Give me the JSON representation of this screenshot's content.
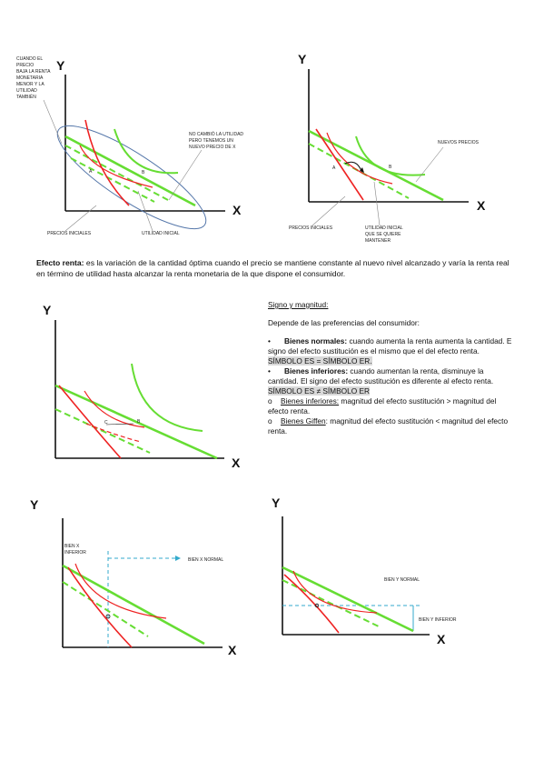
{
  "figures": {
    "fig1": {
      "y_axis": "Y",
      "x_axis": "X",
      "point_a": "A",
      "point_b": "B",
      "note_left": [
        "CUANDO EL",
        "PRECIO",
        "BAJA LA RENTA",
        "MONETARIA",
        "MENOR Y LA",
        "UTILIDAD",
        "TAMBIÉN"
      ],
      "note_right": [
        "NO CAMBIÓ LA UTILIDAD",
        "PERO TENEMOS UN",
        "NUEVO PRECIO DE X"
      ],
      "label_prices": "PRECIOS INICIALES",
      "label_utility": "UTILIDAD INICIAL"
    },
    "fig2": {
      "y_axis": "Y",
      "x_axis": "X",
      "point_a": "A",
      "point_b": "B",
      "label_new_prices": "NUEVOS PRECIOS",
      "label_prices": "PRECIOS INICIALES",
      "label_utility": [
        "UTILIDAD INICIAL",
        "QUE SE QUIERE",
        "MANTENER"
      ]
    },
    "fig3": {
      "y_axis": "Y",
      "x_axis": "X",
      "point_c": "C",
      "point_b": "B"
    },
    "fig4": {
      "y_axis": "Y",
      "x_axis": "X",
      "label_inferior": [
        "BIEN X",
        "INFERIOR"
      ],
      "label_normal": "BIEN X NORMAL"
    },
    "fig5": {
      "y_axis": "Y",
      "x_axis": "X",
      "label_normal": "BIEN Y NORMAL",
      "label_inferior": "BIEN Y INFERIOR"
    }
  },
  "paragraph": {
    "term": "Efecto renta:",
    "text": " es la variación de la cantidad óptima cuando el precio se mantiene constante al nuevo nivel alcanzado y varía la renta real en término de utilidad hasta alcanzar la renta monetaria de la que dispone el consumidor."
  },
  "notes": {
    "title": "Signo y magnitud:",
    "intro": "Depende de las preferencias del consumidor:",
    "bullet_symbol": "•",
    "sub_symbol": "o",
    "normal_term": "Bienes normales:",
    "normal_text": " cuando aumenta la renta aumenta la cantidad. E signo del efecto sustitución es el mismo que el del efecto renta.",
    "normal_symbol": "SÍMBOLO ES = SÍMBOLO ER.",
    "inferior_term": "Bienes inferiores:",
    "inferior_text": " cuando aumentan la renta, disminuye la cantidad. El signo del efecto sustitución es diferente al efecto renta.",
    "inferior_symbol": "SÍMBOLO ES ≠ SÍMBOLO ER",
    "sub1_term": "Bienes inferiores:",
    "sub1_text": " magnitud del efecto sustitución > magnitud del efecto renta.",
    "sub2_term": "Bienes Giffen",
    "sub2_text": ": magnitud del efecto sustitución < magnitud del efecto renta."
  },
  "colors": {
    "green": "#66dd33",
    "red": "#ee2222",
    "oval": "#5577aa",
    "guide": "#33aacc",
    "axis": "#111111"
  }
}
